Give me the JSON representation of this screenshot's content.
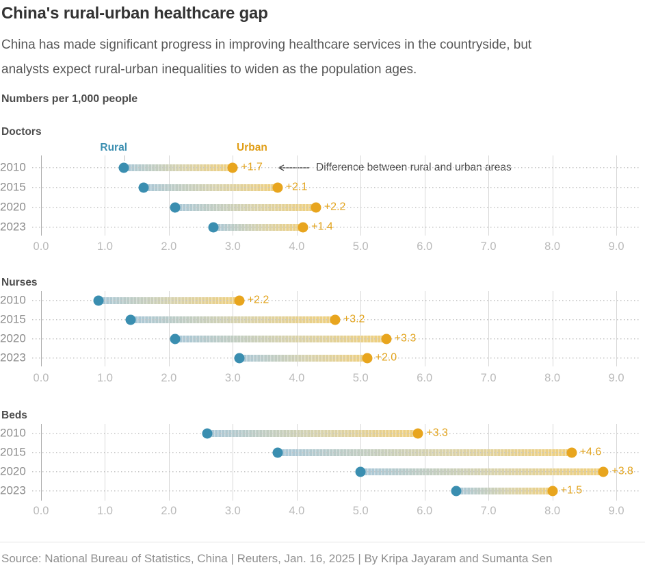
{
  "header": {
    "title": "China's rural-urban healthcare gap",
    "subtitle_line1": "China has made significant progress in improving healthcare services in the countryside, but",
    "subtitle_line2": "analysts expect rural-urban inequalities to widen as the population ages.",
    "units_label": "Numbers per 1,000 people"
  },
  "legend": {
    "rural_label": "Rural",
    "urban_label": "Urban"
  },
  "annotation_text": "Difference between rural and urban areas",
  "colors": {
    "rural": "#3a8eb0",
    "urban": "#e8a51e",
    "legend_urban": "#e09d15",
    "diff_label": "#e2a31c",
    "bar_start": "#a8c7d8",
    "bar_end": "#efcf7d",
    "grid": "#d7d7d7",
    "grid_zero": "#ababab"
  },
  "x_axis": {
    "ticks": [
      "0.0",
      "1.0",
      "2.0",
      "3.0",
      "4.0",
      "5.0",
      "6.0",
      "7.0",
      "8.0",
      "9.0"
    ],
    "min": 0,
    "max": 9
  },
  "chart_data": [
    {
      "type": "dumbbell",
      "title": "Doctors",
      "categories": [
        "2010",
        "2015",
        "2020",
        "2023"
      ],
      "series": [
        {
          "name": "Rural",
          "values": [
            1.3,
            1.6,
            2.1,
            2.7
          ]
        },
        {
          "name": "Urban",
          "values": [
            3.0,
            3.7,
            4.3,
            4.1
          ]
        }
      ],
      "diff_labels": [
        "+1.7",
        "+2.1",
        "+2.2",
        "+1.4"
      ],
      "xlim": [
        0,
        9
      ],
      "grid": true,
      "legend_position": "top"
    },
    {
      "type": "dumbbell",
      "title": "Nurses",
      "categories": [
        "2010",
        "2015",
        "2020",
        "2023"
      ],
      "series": [
        {
          "name": "Rural",
          "values": [
            0.9,
            1.4,
            2.1,
            3.1
          ]
        },
        {
          "name": "Urban",
          "values": [
            3.1,
            4.6,
            5.4,
            5.1
          ]
        }
      ],
      "diff_labels": [
        "+2.2",
        "+3.2",
        "+3.3",
        "+2.0"
      ],
      "xlim": [
        0,
        9
      ],
      "grid": true
    },
    {
      "type": "dumbbell",
      "title": "Beds",
      "categories": [
        "2010",
        "2015",
        "2020",
        "2023"
      ],
      "series": [
        {
          "name": "Rural",
          "values": [
            2.6,
            3.7,
            5.0,
            6.5
          ]
        },
        {
          "name": "Urban",
          "values": [
            5.9,
            8.3,
            8.8,
            8.0
          ]
        }
      ],
      "diff_labels": [
        "+3.3",
        "+4.6",
        "+3.8",
        "+1.5"
      ],
      "xlim": [
        0,
        9
      ],
      "grid": true
    }
  ],
  "footer": {
    "source_line": "Source: National Bureau of Statistics, China | Reuters, Jan. 16, 2025 | By Kripa Jayaram and Sumanta Sen"
  }
}
